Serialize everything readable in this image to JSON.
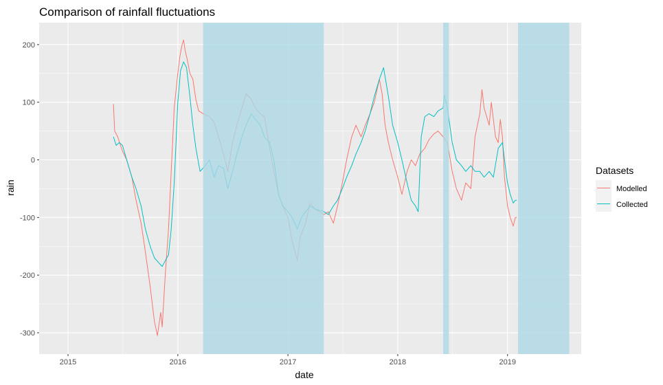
{
  "chart_data": {
    "type": "line",
    "title": "Comparison of rainfall fluctuations",
    "xlabel": "date",
    "ylabel": "rain",
    "xlim": [
      "2014-09-27",
      "2019-09-03"
    ],
    "ylim": [
      -337,
      238
    ],
    "x_ticks": [
      {
        "label": "2015",
        "value": "2015-01-01"
      },
      {
        "label": "2016",
        "value": "2016-01-01"
      },
      {
        "label": "2017",
        "value": "2017-01-01"
      },
      {
        "label": "2018",
        "value": "2018-01-01"
      },
      {
        "label": "2019",
        "value": "2019-01-01"
      }
    ],
    "y_ticks": [
      {
        "label": "200",
        "value": 200
      },
      {
        "label": "100",
        "value": 100
      },
      {
        "label": "0",
        "value": 0
      },
      {
        "label": "-100",
        "value": -100
      },
      {
        "label": "-200",
        "value": -200
      },
      {
        "label": "-300",
        "value": -300
      }
    ],
    "grid": true,
    "legend": {
      "title": "Datasets",
      "position": "right"
    },
    "shaded_periods": [
      {
        "start": "2016-03-25",
        "end": "2017-04-30"
      },
      {
        "start": "2018-06-01",
        "end": "2018-06-20"
      },
      {
        "start": "2019-02-05",
        "end": "2019-07-25"
      }
    ],
    "shade_color": "#add8e6",
    "series": [
      {
        "name": "Modelled",
        "color": "#f8766d",
        "points": [
          [
            "2015-06-01",
            97
          ],
          [
            "2015-06-05",
            50
          ],
          [
            "2015-06-15",
            40
          ],
          [
            "2015-07-01",
            15
          ],
          [
            "2015-07-15",
            0
          ],
          [
            "2015-08-01",
            -30
          ],
          [
            "2015-08-15",
            -70
          ],
          [
            "2015-09-01",
            -110
          ],
          [
            "2015-09-15",
            -160
          ],
          [
            "2015-10-01",
            -220
          ],
          [
            "2015-10-15",
            -280
          ],
          [
            "2015-10-25",
            -305
          ],
          [
            "2015-11-05",
            -265
          ],
          [
            "2015-11-10",
            -290
          ],
          [
            "2015-11-20",
            -200
          ],
          [
            "2015-12-01",
            -120
          ],
          [
            "2015-12-10",
            -20
          ],
          [
            "2015-12-20",
            90
          ],
          [
            "2016-01-01",
            150
          ],
          [
            "2016-01-08",
            180
          ],
          [
            "2016-01-15",
            200
          ],
          [
            "2016-01-20",
            208
          ],
          [
            "2016-01-25",
            190
          ],
          [
            "2016-02-01",
            175
          ],
          [
            "2016-02-10",
            150
          ],
          [
            "2016-02-20",
            140
          ],
          [
            "2016-03-01",
            105
          ],
          [
            "2016-03-10",
            85
          ],
          [
            "2016-03-25",
            80
          ],
          [
            "2016-04-15",
            75
          ],
          [
            "2016-05-01",
            65
          ],
          [
            "2016-05-15",
            40
          ],
          [
            "2016-06-01",
            10
          ],
          [
            "2016-06-15",
            -20
          ],
          [
            "2016-07-01",
            30
          ],
          [
            "2016-07-15",
            60
          ],
          [
            "2016-08-01",
            90
          ],
          [
            "2016-08-15",
            115
          ],
          [
            "2016-09-01",
            105
          ],
          [
            "2016-09-15",
            90
          ],
          [
            "2016-10-01",
            80
          ],
          [
            "2016-10-15",
            75
          ],
          [
            "2016-11-01",
            20
          ],
          [
            "2016-11-15",
            -20
          ],
          [
            "2016-12-01",
            -60
          ],
          [
            "2016-12-15",
            -80
          ],
          [
            "2017-01-01",
            -100
          ],
          [
            "2017-01-15",
            -140
          ],
          [
            "2017-02-01",
            -175
          ],
          [
            "2017-02-10",
            -135
          ],
          [
            "2017-03-01",
            -110
          ],
          [
            "2017-03-15",
            -75
          ],
          [
            "2017-04-01",
            -85
          ],
          [
            "2017-05-01",
            -95
          ],
          [
            "2017-05-15",
            -90
          ],
          [
            "2017-06-01",
            -110
          ],
          [
            "2017-06-15",
            -80
          ],
          [
            "2017-07-01",
            -40
          ],
          [
            "2017-07-15",
            0
          ],
          [
            "2017-08-01",
            40
          ],
          [
            "2017-08-15",
            60
          ],
          [
            "2017-09-01",
            40
          ],
          [
            "2017-09-15",
            60
          ],
          [
            "2017-10-01",
            80
          ],
          [
            "2017-10-15",
            100
          ],
          [
            "2017-11-01",
            140
          ],
          [
            "2017-11-10",
            115
          ],
          [
            "2017-11-20",
            60
          ],
          [
            "2017-12-01",
            30
          ],
          [
            "2017-12-15",
            0
          ],
          [
            "2018-01-01",
            -30
          ],
          [
            "2018-01-15",
            -60
          ],
          [
            "2018-02-01",
            -20
          ],
          [
            "2018-02-15",
            0
          ],
          [
            "2018-03-01",
            -10
          ],
          [
            "2018-03-15",
            10
          ],
          [
            "2018-04-01",
            20
          ],
          [
            "2018-04-15",
            35
          ],
          [
            "2018-05-01",
            45
          ],
          [
            "2018-05-15",
            50
          ],
          [
            "2018-06-01",
            40
          ],
          [
            "2018-06-15",
            30
          ],
          [
            "2018-07-01",
            -20
          ],
          [
            "2018-07-15",
            -50
          ],
          [
            "2018-08-01",
            -70
          ],
          [
            "2018-08-15",
            -40
          ],
          [
            "2018-09-01",
            -50
          ],
          [
            "2018-09-15",
            40
          ],
          [
            "2018-10-01",
            80
          ],
          [
            "2018-10-08",
            122
          ],
          [
            "2018-10-15",
            90
          ],
          [
            "2018-11-01",
            60
          ],
          [
            "2018-11-08",
            100
          ],
          [
            "2018-11-15",
            70
          ],
          [
            "2018-11-22",
            40
          ],
          [
            "2018-12-01",
            30
          ],
          [
            "2018-12-08",
            70
          ],
          [
            "2018-12-15",
            40
          ],
          [
            "2018-12-22",
            -30
          ],
          [
            "2019-01-01",
            -80
          ],
          [
            "2019-01-10",
            -100
          ],
          [
            "2019-01-20",
            -115
          ],
          [
            "2019-01-27",
            -100
          ],
          [
            "2019-02-01",
            -100
          ]
        ]
      },
      {
        "name": "Collected",
        "color": "#00bfc4",
        "points": [
          [
            "2015-06-01",
            40
          ],
          [
            "2015-06-10",
            25
          ],
          [
            "2015-06-20",
            30
          ],
          [
            "2015-07-01",
            25
          ],
          [
            "2015-07-15",
            0
          ],
          [
            "2015-08-01",
            -30
          ],
          [
            "2015-08-15",
            -50
          ],
          [
            "2015-09-01",
            -80
          ],
          [
            "2015-09-15",
            -120
          ],
          [
            "2015-10-01",
            -150
          ],
          [
            "2015-10-15",
            -170
          ],
          [
            "2015-11-01",
            -180
          ],
          [
            "2015-11-10",
            -185
          ],
          [
            "2015-11-20",
            -175
          ],
          [
            "2015-12-01",
            -165
          ],
          [
            "2015-12-10",
            -120
          ],
          [
            "2015-12-20",
            -40
          ],
          [
            "2016-01-01",
            100
          ],
          [
            "2016-01-10",
            155
          ],
          [
            "2016-01-20",
            170
          ],
          [
            "2016-01-30",
            160
          ],
          [
            "2016-02-10",
            110
          ],
          [
            "2016-02-20",
            60
          ],
          [
            "2016-03-01",
            20
          ],
          [
            "2016-03-15",
            -20
          ],
          [
            "2016-04-01",
            -10
          ],
          [
            "2016-04-15",
            0
          ],
          [
            "2016-05-01",
            -30
          ],
          [
            "2016-05-15",
            -10
          ],
          [
            "2016-06-01",
            -15
          ],
          [
            "2016-06-15",
            -50
          ],
          [
            "2016-07-01",
            -20
          ],
          [
            "2016-07-15",
            10
          ],
          [
            "2016-08-01",
            40
          ],
          [
            "2016-08-15",
            60
          ],
          [
            "2016-09-01",
            80
          ],
          [
            "2016-09-15",
            70
          ],
          [
            "2016-10-01",
            60
          ],
          [
            "2016-10-15",
            40
          ],
          [
            "2016-11-01",
            30
          ],
          [
            "2016-11-15",
            0
          ],
          [
            "2016-12-01",
            -60
          ],
          [
            "2016-12-15",
            -80
          ],
          [
            "2017-01-01",
            -90
          ],
          [
            "2017-01-15",
            -100
          ],
          [
            "2017-02-01",
            -120
          ],
          [
            "2017-02-15",
            -100
          ],
          [
            "2017-03-01",
            -90
          ],
          [
            "2017-03-15",
            -80
          ],
          [
            "2017-04-01",
            -85
          ],
          [
            "2017-05-01",
            -90
          ],
          [
            "2017-05-15",
            -95
          ],
          [
            "2017-06-01",
            -80
          ],
          [
            "2017-06-15",
            -70
          ],
          [
            "2017-07-01",
            -50
          ],
          [
            "2017-07-15",
            -30
          ],
          [
            "2017-08-01",
            -10
          ],
          [
            "2017-08-15",
            10
          ],
          [
            "2017-09-01",
            30
          ],
          [
            "2017-09-15",
            50
          ],
          [
            "2017-10-01",
            80
          ],
          [
            "2017-10-15",
            110
          ],
          [
            "2017-11-01",
            140
          ],
          [
            "2017-11-15",
            160
          ],
          [
            "2017-12-01",
            110
          ],
          [
            "2017-12-15",
            60
          ],
          [
            "2018-01-01",
            30
          ],
          [
            "2018-01-15",
            0
          ],
          [
            "2018-02-01",
            -40
          ],
          [
            "2018-02-15",
            -70
          ],
          [
            "2018-03-01",
            -80
          ],
          [
            "2018-03-10",
            -90
          ],
          [
            "2018-03-20",
            40
          ],
          [
            "2018-04-01",
            75
          ],
          [
            "2018-04-15",
            80
          ],
          [
            "2018-05-01",
            75
          ],
          [
            "2018-05-15",
            85
          ],
          [
            "2018-06-01",
            90
          ],
          [
            "2018-06-05",
            112
          ],
          [
            "2018-06-15",
            90
          ],
          [
            "2018-07-01",
            30
          ],
          [
            "2018-07-15",
            0
          ],
          [
            "2018-08-01",
            -10
          ],
          [
            "2018-08-15",
            -20
          ],
          [
            "2018-09-01",
            -10
          ],
          [
            "2018-09-15",
            -20
          ],
          [
            "2018-10-01",
            -20
          ],
          [
            "2018-10-15",
            -30
          ],
          [
            "2018-11-01",
            -20
          ],
          [
            "2018-11-15",
            -30
          ],
          [
            "2018-12-01",
            20
          ],
          [
            "2018-12-15",
            30
          ],
          [
            "2018-12-22",
            0
          ],
          [
            "2019-01-01",
            -40
          ],
          [
            "2019-01-10",
            -60
          ],
          [
            "2019-01-20",
            -75
          ],
          [
            "2019-01-27",
            -70
          ],
          [
            "2019-02-01",
            -70
          ]
        ]
      }
    ]
  }
}
